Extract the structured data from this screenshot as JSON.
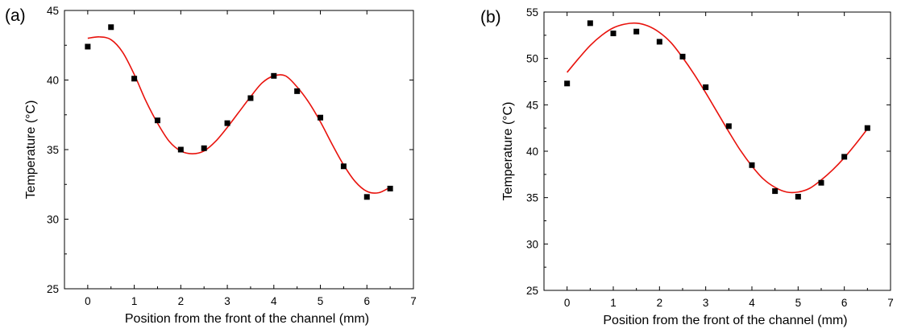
{
  "chart_data": [
    {
      "type": "scatter",
      "panel_label": "(a)",
      "xlabel": "Position from the front of the channel (mm)",
      "ylabel": "Temperature (°C)",
      "xlim": [
        -0.5,
        7
      ],
      "ylim": [
        25,
        45
      ],
      "xticks": [
        0,
        1,
        2,
        3,
        4,
        5,
        6,
        7
      ],
      "yticks": [
        25,
        30,
        35,
        40,
        45
      ],
      "grid": false,
      "legend": "none",
      "marker_color": "#000000",
      "fit_color": "#e8120c",
      "series": [
        {
          "values": [
            {
              "x": 0,
              "y": 42.4
            },
            {
              "x": 0.5,
              "y": 43.8
            },
            {
              "x": 1,
              "y": 40.1
            },
            {
              "x": 1.5,
              "y": 37.1
            },
            {
              "x": 2,
              "y": 35.0
            },
            {
              "x": 2.5,
              "y": 35.1
            },
            {
              "x": 3,
              "y": 36.9
            },
            {
              "x": 3.5,
              "y": 38.7
            },
            {
              "x": 4,
              "y": 40.3
            },
            {
              "x": 4.5,
              "y": 39.2
            },
            {
              "x": 5,
              "y": 37.3
            },
            {
              "x": 5.5,
              "y": 33.8
            },
            {
              "x": 6,
              "y": 31.6
            },
            {
              "x": 6.5,
              "y": 32.2
            }
          ]
        }
      ],
      "fit_curve": [
        {
          "x": 0,
          "y": 43.0
        },
        {
          "x": 0.25,
          "y": 43.1
        },
        {
          "x": 0.5,
          "y": 42.9
        },
        {
          "x": 0.75,
          "y": 42.0
        },
        {
          "x": 1,
          "y": 40.4
        },
        {
          "x": 1.25,
          "y": 38.5
        },
        {
          "x": 1.5,
          "y": 36.9
        },
        {
          "x": 1.75,
          "y": 35.6
        },
        {
          "x": 2,
          "y": 34.9
        },
        {
          "x": 2.25,
          "y": 34.7
        },
        {
          "x": 2.5,
          "y": 34.9
        },
        {
          "x": 2.75,
          "y": 35.6
        },
        {
          "x": 3,
          "y": 36.6
        },
        {
          "x": 3.25,
          "y": 37.7
        },
        {
          "x": 3.5,
          "y": 38.8
        },
        {
          "x": 3.75,
          "y": 39.8
        },
        {
          "x": 4,
          "y": 40.3
        },
        {
          "x": 4.25,
          "y": 40.3
        },
        {
          "x": 4.5,
          "y": 39.5
        },
        {
          "x": 4.75,
          "y": 38.4
        },
        {
          "x": 5,
          "y": 37.0
        },
        {
          "x": 5.25,
          "y": 35.4
        },
        {
          "x": 5.5,
          "y": 33.9
        },
        {
          "x": 5.75,
          "y": 32.7
        },
        {
          "x": 6,
          "y": 32.0
        },
        {
          "x": 6.25,
          "y": 31.9
        },
        {
          "x": 6.5,
          "y": 32.3
        }
      ]
    },
    {
      "type": "scatter",
      "panel_label": "(b)",
      "xlabel": "Position from the front of the channel (mm)",
      "ylabel": "Temperature (°C)",
      "xlim": [
        -0.5,
        7
      ],
      "ylim": [
        25,
        55
      ],
      "xticks": [
        0,
        1,
        2,
        3,
        4,
        5,
        6,
        7
      ],
      "yticks": [
        25,
        30,
        35,
        40,
        45,
        50,
        55
      ],
      "grid": false,
      "legend": "none",
      "marker_color": "#000000",
      "fit_color": "#e8120c",
      "series": [
        {
          "values": [
            {
              "x": 0,
              "y": 47.3
            },
            {
              "x": 0.5,
              "y": 53.8
            },
            {
              "x": 1,
              "y": 52.7
            },
            {
              "x": 1.5,
              "y": 52.9
            },
            {
              "x": 2,
              "y": 51.8
            },
            {
              "x": 2.5,
              "y": 50.2
            },
            {
              "x": 3,
              "y": 46.9
            },
            {
              "x": 3.5,
              "y": 42.7
            },
            {
              "x": 4,
              "y": 38.5
            },
            {
              "x": 4.5,
              "y": 35.7
            },
            {
              "x": 5,
              "y": 35.1
            },
            {
              "x": 5.5,
              "y": 36.6
            },
            {
              "x": 6,
              "y": 39.4
            },
            {
              "x": 6.5,
              "y": 42.5
            }
          ]
        }
      ],
      "fit_curve": [
        {
          "x": 0,
          "y": 48.5
        },
        {
          "x": 0.25,
          "y": 50.0
        },
        {
          "x": 0.5,
          "y": 51.4
        },
        {
          "x": 0.75,
          "y": 52.5
        },
        {
          "x": 1,
          "y": 53.3
        },
        {
          "x": 1.25,
          "y": 53.7
        },
        {
          "x": 1.5,
          "y": 53.8
        },
        {
          "x": 1.75,
          "y": 53.5
        },
        {
          "x": 2,
          "y": 52.8
        },
        {
          "x": 2.25,
          "y": 51.7
        },
        {
          "x": 2.5,
          "y": 50.1
        },
        {
          "x": 2.75,
          "y": 48.3
        },
        {
          "x": 3,
          "y": 46.3
        },
        {
          "x": 3.25,
          "y": 44.2
        },
        {
          "x": 3.5,
          "y": 42.1
        },
        {
          "x": 3.75,
          "y": 40.1
        },
        {
          "x": 4,
          "y": 38.4
        },
        {
          "x": 4.25,
          "y": 37.0
        },
        {
          "x": 4.5,
          "y": 36.1
        },
        {
          "x": 4.75,
          "y": 35.6
        },
        {
          "x": 5,
          "y": 35.6
        },
        {
          "x": 5.25,
          "y": 36.0
        },
        {
          "x": 5.5,
          "y": 36.9
        },
        {
          "x": 5.75,
          "y": 38.0
        },
        {
          "x": 6,
          "y": 39.3
        },
        {
          "x": 6.25,
          "y": 40.8
        },
        {
          "x": 6.5,
          "y": 42.4
        }
      ]
    }
  ]
}
